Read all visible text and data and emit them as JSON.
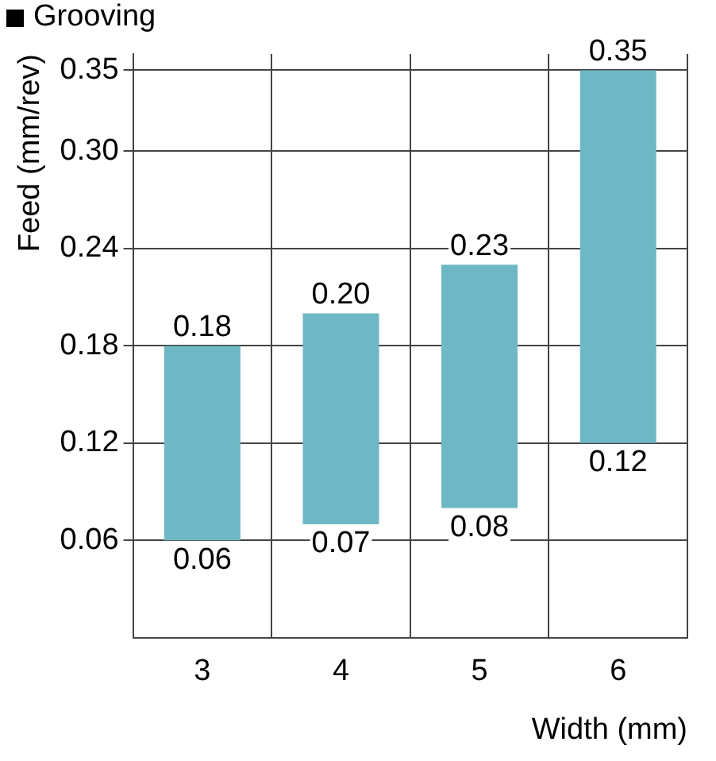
{
  "chart_data": {
    "type": "bar",
    "title": "Grooving",
    "xlabel": "Width (mm)",
    "ylabel": "Feed (mm/rev)",
    "categories": [
      "3",
      "4",
      "5",
      "6"
    ],
    "base": [
      0.06,
      0.07,
      0.08,
      0.12
    ],
    "values": [
      0.12,
      0.13,
      0.15,
      0.23
    ],
    "color": "#6db8c4",
    "ylim": [
      0,
      0.36
    ],
    "yticks": [
      0.06,
      0.12,
      0.18,
      0.24,
      {
        "value": 0.3,
        "label": "0.30"
      },
      0.35
    ],
    "grid": true,
    "annotations": [
      {
        "text": "0.18",
        "x": "3",
        "y": 0.18
      },
      {
        "text": "0.06",
        "x": "3",
        "y": 0.06
      },
      {
        "text": "0.20",
        "x": "4",
        "y": 0.2
      },
      {
        "text": "0.07",
        "x": "4",
        "y": 0.07
      },
      {
        "text": "0.23",
        "x": "5",
        "y": 0.23
      },
      {
        "text": "0.08",
        "x": "5",
        "y": 0.08
      },
      {
        "text": "0.35",
        "x": "6",
        "y": 0.35
      },
      {
        "text": "0.12",
        "x": "6",
        "y": 0.12
      }
    ]
  }
}
